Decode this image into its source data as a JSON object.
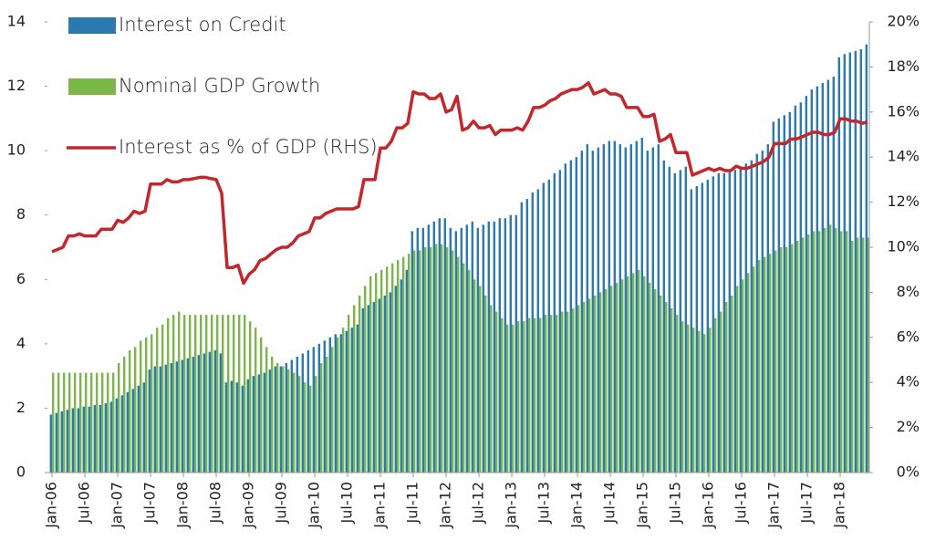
{
  "chart_data": {
    "type": "bar",
    "categories": [
      "Jan-06",
      null,
      null,
      null,
      null,
      null,
      "Jul-06",
      null,
      null,
      null,
      null,
      null,
      "Jan-07",
      null,
      null,
      null,
      null,
      null,
      "Jul-07",
      null,
      null,
      null,
      null,
      null,
      "Jan-08",
      null,
      null,
      null,
      null,
      null,
      "Jul-08",
      null,
      null,
      null,
      null,
      null,
      "Jan-09",
      null,
      null,
      null,
      null,
      null,
      "Jul-09",
      null,
      null,
      null,
      null,
      null,
      "Jan-10",
      null,
      null,
      null,
      null,
      null,
      "Jul-10",
      null,
      null,
      null,
      null,
      null,
      "Jan-11",
      null,
      null,
      null,
      null,
      null,
      "Jul-11",
      null,
      null,
      null,
      null,
      null,
      "Jan-12",
      null,
      null,
      null,
      null,
      null,
      "Jul-12",
      null,
      null,
      null,
      null,
      null,
      "Jan-13",
      null,
      null,
      null,
      null,
      null,
      "Jul-13",
      null,
      null,
      null,
      null,
      null,
      "Jan-14",
      null,
      null,
      null,
      null,
      null,
      "Jul-14",
      null,
      null,
      null,
      null,
      null,
      "Jan-15",
      null,
      null,
      null,
      null,
      null,
      "Jul-15",
      null,
      null,
      null,
      null,
      null,
      "Jan-16",
      null,
      null,
      null,
      null,
      null,
      "Jul-16",
      null,
      null,
      null,
      null,
      null,
      "Jan-17",
      null,
      null,
      null,
      null,
      null,
      "Jul-17",
      null,
      null,
      null,
      null,
      null,
      "Jan-18",
      null,
      null,
      null,
      null,
      null
    ],
    "series": [
      {
        "name": "Interest on Credit",
        "color": "#2a7ab0",
        "kind": "bar",
        "values": [
          1.8,
          1.85,
          1.9,
          1.95,
          2.0,
          2.0,
          2.05,
          2.05,
          2.1,
          2.1,
          2.15,
          2.2,
          2.3,
          2.4,
          2.5,
          2.6,
          2.7,
          2.8,
          3.2,
          3.3,
          3.3,
          3.35,
          3.4,
          3.45,
          3.5,
          3.55,
          3.6,
          3.65,
          3.7,
          3.75,
          3.8,
          3.7,
          2.8,
          2.85,
          2.8,
          2.7,
          2.9,
          3.0,
          3.05,
          3.1,
          3.2,
          3.3,
          3.3,
          3.4,
          3.5,
          3.6,
          3.7,
          3.8,
          3.9,
          4.0,
          4.1,
          4.2,
          4.3,
          4.3,
          4.4,
          4.5,
          4.6,
          5.1,
          5.2,
          5.3,
          5.4,
          5.5,
          5.6,
          5.8,
          6.0,
          6.3,
          7.5,
          7.6,
          7.6,
          7.7,
          7.8,
          7.9,
          7.9,
          7.6,
          7.5,
          7.6,
          7.7,
          7.8,
          7.6,
          7.7,
          7.8,
          7.8,
          7.9,
          7.9,
          8.0,
          8.0,
          8.4,
          8.5,
          8.7,
          8.8,
          9.0,
          9.1,
          9.3,
          9.4,
          9.6,
          9.7,
          9.8,
          10.0,
          10.2,
          10.0,
          10.1,
          10.2,
          10.3,
          10.3,
          10.2,
          10.1,
          10.2,
          10.3,
          10.4,
          10.0,
          10.1,
          10.2,
          9.7,
          9.5,
          9.3,
          9.4,
          9.5,
          8.8,
          8.9,
          9.0,
          9.1,
          9.2,
          9.3,
          9.3,
          9.4,
          9.4,
          9.5,
          9.6,
          9.7,
          9.9,
          10.0,
          10.2,
          10.9,
          11.0,
          11.1,
          11.2,
          11.4,
          11.5,
          11.7,
          11.9,
          12.0,
          12.1,
          12.2,
          12.3,
          12.9,
          13.0,
          13.05,
          13.1,
          13.15,
          13.3
        ]
      },
      {
        "name": "Nominal GDP Growth",
        "color": "#7ab648",
        "kind": "bar",
        "values": [
          3.1,
          3.1,
          3.1,
          3.1,
          3.1,
          3.1,
          3.1,
          3.1,
          3.1,
          3.1,
          3.1,
          3.1,
          3.4,
          3.6,
          3.8,
          3.9,
          4.1,
          4.2,
          4.3,
          4.5,
          4.6,
          4.8,
          4.9,
          5.0,
          4.9,
          4.9,
          4.9,
          4.9,
          4.9,
          4.9,
          4.9,
          4.9,
          4.9,
          4.9,
          4.9,
          4.9,
          4.7,
          4.5,
          4.2,
          3.9,
          3.6,
          3.4,
          3.3,
          3.2,
          3.1,
          3.0,
          2.8,
          2.7,
          3.0,
          3.4,
          3.6,
          3.9,
          4.2,
          4.5,
          4.9,
          5.2,
          5.5,
          5.8,
          6.1,
          6.2,
          6.3,
          6.4,
          6.5,
          6.6,
          6.7,
          6.8,
          6.9,
          6.9,
          7.0,
          7.0,
          7.1,
          7.1,
          7.0,
          6.9,
          6.7,
          6.5,
          6.3,
          6.0,
          5.8,
          5.5,
          5.2,
          5.0,
          4.8,
          4.6,
          4.6,
          4.7,
          4.7,
          4.8,
          4.8,
          4.8,
          4.9,
          4.9,
          4.9,
          5.0,
          5.0,
          5.1,
          5.2,
          5.3,
          5.4,
          5.5,
          5.6,
          5.7,
          5.8,
          5.9,
          6.0,
          6.1,
          6.2,
          6.3,
          6.1,
          5.9,
          5.7,
          5.5,
          5.3,
          5.1,
          4.9,
          4.7,
          4.6,
          4.5,
          4.4,
          4.3,
          4.5,
          4.8,
          5.0,
          5.3,
          5.5,
          5.8,
          6.0,
          6.2,
          6.4,
          6.6,
          6.7,
          6.8,
          6.9,
          7.0,
          7.0,
          7.1,
          7.2,
          7.3,
          7.4,
          7.5,
          7.5,
          7.6,
          7.7,
          7.6,
          7.5,
          7.5,
          7.2,
          7.3,
          7.3,
          7.3
        ]
      },
      {
        "name": "Interest as % of GDP (RHS)",
        "color": "#c0282d",
        "kind": "line",
        "axis": "y2",
        "values": [
          9.8,
          9.9,
          10.0,
          10.5,
          10.5,
          10.6,
          10.5,
          10.5,
          10.5,
          10.8,
          10.8,
          10.8,
          11.2,
          11.1,
          11.3,
          11.6,
          11.5,
          11.6,
          12.8,
          12.8,
          12.8,
          13.0,
          12.9,
          12.9,
          13.0,
          13.0,
          13.05,
          13.1,
          13.1,
          13.05,
          13.0,
          12.4,
          9.1,
          9.1,
          9.2,
          8.4,
          8.8,
          9.0,
          9.4,
          9.5,
          9.7,
          9.9,
          10.0,
          10.0,
          10.2,
          10.5,
          10.6,
          10.7,
          11.3,
          11.3,
          11.5,
          11.6,
          11.7,
          11.7,
          11.7,
          11.7,
          11.8,
          13.0,
          13.0,
          13.0,
          14.4,
          14.4,
          14.7,
          15.3,
          15.3,
          15.5,
          16.9,
          16.8,
          16.8,
          16.6,
          16.6,
          16.8,
          16.0,
          16.1,
          16.7,
          15.2,
          15.3,
          15.6,
          15.3,
          15.3,
          15.4,
          15.0,
          15.2,
          15.2,
          15.2,
          15.3,
          15.2,
          15.6,
          16.2,
          16.2,
          16.3,
          16.5,
          16.6,
          16.8,
          16.9,
          17.0,
          17.0,
          17.1,
          17.3,
          16.8,
          16.9,
          17.0,
          16.8,
          16.8,
          16.7,
          16.2,
          16.2,
          16.2,
          15.8,
          15.8,
          15.9,
          14.7,
          14.8,
          15.0,
          14.2,
          14.2,
          14.2,
          13.2,
          13.3,
          13.4,
          13.5,
          13.4,
          13.5,
          13.4,
          13.4,
          13.6,
          13.5,
          13.5,
          13.6,
          13.7,
          13.8,
          14.0,
          14.6,
          14.6,
          14.6,
          14.8,
          14.8,
          14.9,
          15.0,
          15.1,
          15.1,
          15.0,
          15.0,
          15.1,
          15.7,
          15.7,
          15.6,
          15.6,
          15.5,
          15.55
        ]
      }
    ],
    "ylim": [
      0,
      14
    ],
    "yticks": [
      0,
      2,
      4,
      6,
      8,
      10,
      12,
      14
    ],
    "y2lim": [
      0,
      20
    ],
    "y2ticks": [
      {
        "value": 0,
        "label": "0%"
      },
      {
        "value": 2,
        "label": "2%"
      },
      {
        "value": 4,
        "label": "4%"
      },
      {
        "value": 6,
        "label": "6%"
      },
      {
        "value": 8,
        "label": "8%"
      },
      {
        "value": 10,
        "label": "10%"
      },
      {
        "value": 12,
        "label": "12%"
      },
      {
        "value": 14,
        "label": "14%"
      },
      {
        "value": 16,
        "label": "16%"
      },
      {
        "value": 18,
        "label": "18%"
      },
      {
        "value": 20,
        "label": "20%"
      }
    ],
    "legend": "top-left",
    "grid": false
  }
}
